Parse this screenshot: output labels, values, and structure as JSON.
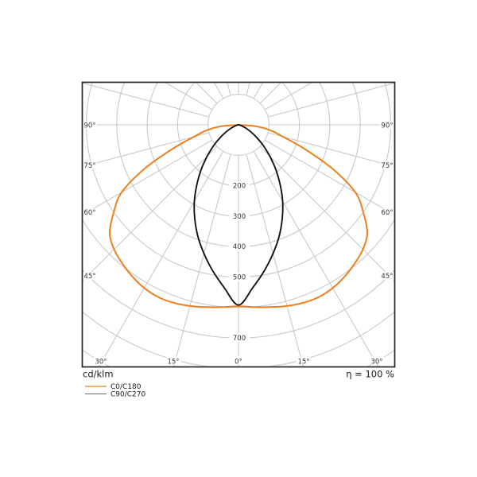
{
  "footer": {
    "left_label": "cd/klm",
    "right_label": "η = 100 %"
  },
  "legend": {
    "position": "bottom-left",
    "items": [
      {
        "label": "C0/C180",
        "color": "#ed801e"
      },
      {
        "label": "C90/C270",
        "color": "#666666"
      }
    ]
  },
  "colors": {
    "grid": "#c9c9c9",
    "frame": "#262626",
    "label_text": "#333333",
    "footer_text": "#1a1a1a",
    "curve_c0": "#ed801e",
    "curve_c90": "#141414",
    "background": "#ffffff"
  },
  "chart_data": {
    "type": "line",
    "variant": "polar-photometric-luminous-intensity",
    "title": "",
    "unit_label": "cd/klm",
    "efficiency_label": "η = 100 %",
    "grid": "on",
    "angle_spoke_step_deg": 15,
    "side_angle_ticks_deg": [
      90,
      75,
      60,
      45
    ],
    "side_angle_labels": [
      "90°",
      "75°",
      "60°",
      "45°"
    ],
    "bottom_angle_ticks_deg": [
      -30,
      -15,
      0,
      15,
      30
    ],
    "bottom_angle_labels": [
      "30°",
      "15°",
      "0°",
      "15°",
      "30°"
    ],
    "radial_grid_step": 100,
    "radial_ticks": [
      200,
      300,
      400,
      500,
      700
    ],
    "radial_tick_labels": [
      "200",
      "300",
      "400",
      "500",
      "700"
    ],
    "radial_range_visible": [
      0,
      800
    ],
    "series": [
      {
        "name": "C0/C180",
        "color": "#ed801e",
        "symmetric": true,
        "angles_deg": [
          0,
          5,
          10,
          15,
          20,
          25,
          30,
          35,
          40,
          45,
          50,
          55,
          60,
          65,
          70,
          75,
          80,
          85,
          90
        ],
        "values_cd_per_klm": [
          596,
          601,
          608,
          616,
          622,
          624,
          619,
          608,
          594,
          578,
          552,
          500,
          443,
          340,
          230,
          152,
          108,
          58,
          0
        ]
      },
      {
        "name": "C90/C270",
        "color": "#141414",
        "symmetric": true,
        "angles_deg": [
          0,
          5,
          10,
          15,
          20,
          25,
          30,
          35,
          40,
          45,
          50,
          55,
          60,
          65,
          70,
          75,
          80,
          85,
          90
        ],
        "values_cd_per_klm": [
          592,
          537,
          487,
          438,
          390,
          340,
          290,
          238,
          190,
          145,
          107,
          74,
          48,
          28,
          15,
          7,
          3,
          1,
          0
        ]
      }
    ]
  }
}
